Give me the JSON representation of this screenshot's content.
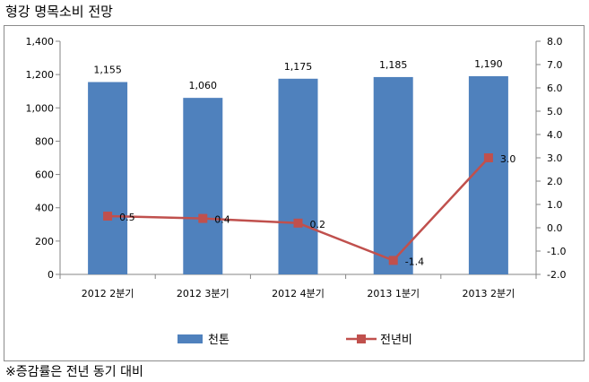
{
  "title": "형강 명목소비 전망",
  "footnote": "※증감률은 전년 동기 대비",
  "chart_data": {
    "type": "bar",
    "categories": [
      "2012 2분기",
      "2012 3분기",
      "2012 4분기",
      "2013 1분기",
      "2013 2분기"
    ],
    "series": [
      {
        "name": "천톤",
        "type": "bar",
        "axis": "left",
        "values": [
          1155,
          1060,
          1175,
          1185,
          1190
        ],
        "labels": [
          "1,155",
          "1,060",
          "1,175",
          "1,185",
          "1,190"
        ],
        "color": "#4f81bd"
      },
      {
        "name": "전년비",
        "type": "line",
        "axis": "right",
        "values": [
          0.5,
          0.4,
          0.2,
          -1.4,
          3.0
        ],
        "labels": [
          "0.5",
          "0.4",
          "0.2",
          "-1.4",
          "3.0"
        ],
        "color": "#c0504d"
      }
    ],
    "ylim_left": [
      0,
      1400
    ],
    "yticks_left": [
      "0",
      "200",
      "400",
      "600",
      "800",
      "1,000",
      "1,200",
      "1,400"
    ],
    "ylim_right": [
      -2.0,
      8.0
    ],
    "yticks_right": [
      "-2.0",
      "-1.0",
      "0.0",
      "1.0",
      "2.0",
      "3.0",
      "4.0",
      "5.0",
      "6.0",
      "7.0",
      "8.0"
    ],
    "legend_position": "bottom",
    "grid": false
  }
}
